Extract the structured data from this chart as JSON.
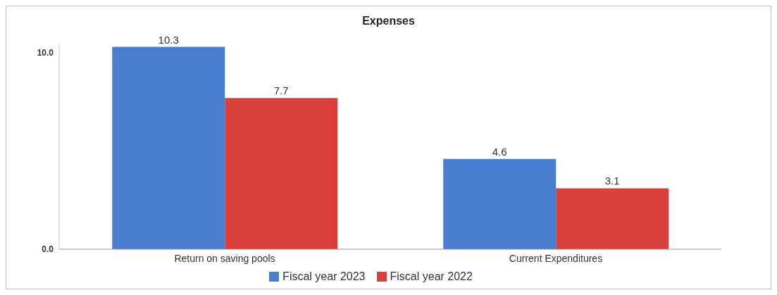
{
  "chart_data": {
    "type": "bar",
    "title": "Expenses",
    "categories": [
      "Return on saving pools",
      "Current Expenditures"
    ],
    "series": [
      {
        "name": "Fiscal year 2023",
        "color": "#4a7fd0",
        "values": [
          10.3,
          4.6
        ]
      },
      {
        "name": "Fiscal year 2022",
        "color": "#d9403c",
        "values": [
          7.7,
          3.1
        ]
      }
    ],
    "ylim": [
      0,
      10.5
    ],
    "yticks": [
      {
        "value": 0,
        "label": "0.0"
      },
      {
        "value": 10,
        "label": "10.0"
      }
    ],
    "grid": false,
    "legend": "bottom",
    "data_labels": true
  }
}
